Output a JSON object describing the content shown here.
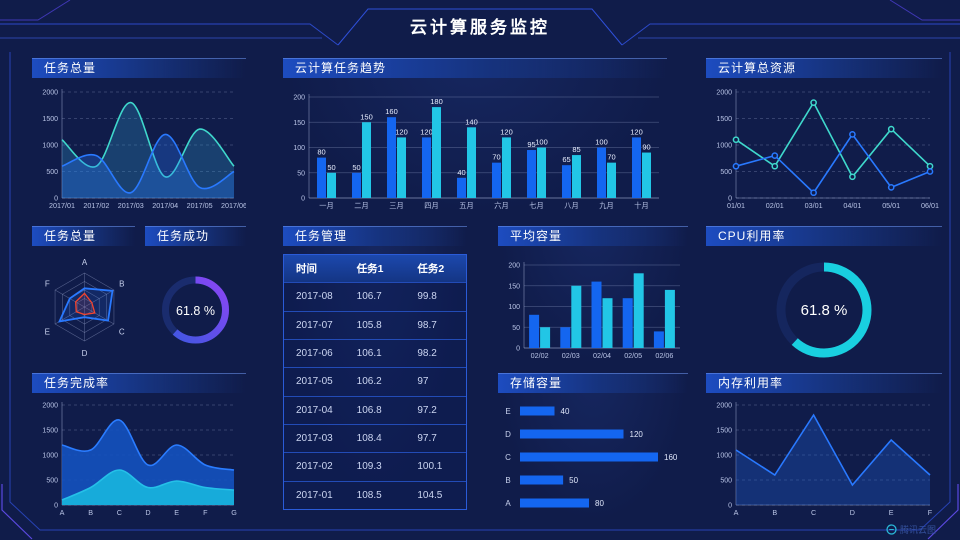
{
  "page": {
    "title": "云计算服务监控",
    "watermark": "腾讯云图"
  },
  "colors": {
    "background": "#101c4a",
    "accent_blue": "#1d4cc0",
    "bar_blue": "#1466f0",
    "bar_cyan": "#22c6e6",
    "line_blue": "#2979ff",
    "line_teal": "#3fd8cc",
    "radar_red": "#f4442e",
    "gauge_purple": "#8b45f5",
    "gauge_cyan": "#19cfe0",
    "axis_text": "#b9c4e6"
  },
  "panels": {
    "task_total_line": {
      "title": "任务总量"
    },
    "task_trend": {
      "title": "云计算任务趋势"
    },
    "total_resources": {
      "title": "云计算总资源"
    },
    "task_total_radar": {
      "title": "任务总量"
    },
    "task_success": {
      "title": "任务成功"
    },
    "task_management": {
      "title": "任务管理"
    },
    "avg_capacity": {
      "title": "平均容量"
    },
    "cpu": {
      "title": "CPU利用率"
    },
    "task_completion": {
      "title": "任务完成率"
    },
    "storage": {
      "title": "存储容量"
    },
    "memory": {
      "title": "内存利用率"
    }
  },
  "chart_data": [
    {
      "id": "task_total_line",
      "type": "area",
      "title": "任务总量",
      "smooth": true,
      "x": [
        "2017/01",
        "2017/02",
        "2017/03",
        "2017/04",
        "2017/05",
        "2017/06"
      ],
      "ylim": [
        0,
        2000
      ],
      "yticks": [
        0,
        500,
        1000,
        1500,
        2000
      ],
      "grid": "dashed",
      "series": [
        {
          "stroke": "#3fd8cc",
          "fill": "rgba(46,150,200,0.30)",
          "values": [
            1100,
            600,
            1800,
            400,
            1300,
            600
          ]
        },
        {
          "stroke": "#2979ff",
          "fill": "rgba(41,121,255,0.30)",
          "values": [
            600,
            800,
            100,
            1200,
            200,
            500
          ]
        }
      ]
    },
    {
      "id": "task_trend",
      "type": "bar",
      "title": "云计算任务趋势",
      "labels": true,
      "categories": [
        "一月",
        "二月",
        "三月",
        "四月",
        "五月",
        "六月",
        "七月",
        "八月",
        "九月",
        "十月"
      ],
      "ylim": [
        0,
        200
      ],
      "yticks": [
        0,
        50,
        100,
        150,
        200
      ],
      "series": [
        {
          "color": "#1466f0",
          "values": [
            80,
            50,
            160,
            120,
            40,
            70,
            95,
            65,
            100,
            120
          ]
        },
        {
          "color": "#22c6e6",
          "values": [
            50,
            150,
            120,
            180,
            140,
            120,
            100,
            85,
            70,
            90
          ]
        }
      ]
    },
    {
      "id": "total_resources",
      "type": "line",
      "title": "云计算总资源",
      "markers": true,
      "x": [
        "01/01",
        "02/01",
        "03/01",
        "04/01",
        "05/01",
        "06/01"
      ],
      "ylim": [
        0,
        2000
      ],
      "yticks": [
        0,
        500,
        1000,
        1500,
        2000
      ],
      "grid": "dashed",
      "series": [
        {
          "stroke": "#3fd8cc",
          "values": [
            1100,
            600,
            1800,
            400,
            1300,
            600
          ]
        },
        {
          "stroke": "#2979ff",
          "values": [
            600,
            800,
            100,
            1200,
            200,
            500
          ]
        }
      ]
    },
    {
      "id": "task_total_radar",
      "type": "radar",
      "title": "任务总量",
      "axes": [
        "A",
        "B",
        "C",
        "D",
        "E",
        "F"
      ],
      "max": 100,
      "series": [
        {
          "stroke": "#2979ff",
          "fill": "rgba(41,121,255,0.15)",
          "values": [
            55,
            95,
            80,
            30,
            85,
            50
          ]
        },
        {
          "stroke": "#f4442e",
          "fill": "rgba(244,68,46,0.12)",
          "values": [
            40,
            25,
            35,
            22,
            28,
            30
          ]
        }
      ]
    },
    {
      "id": "task_success_gauge",
      "type": "gauge",
      "title": "任务成功",
      "percent": 61.8,
      "value": "61.8 %",
      "colors": [
        "#3c58e0",
        "#8b45f5"
      ],
      "track": "#1a2c6e",
      "r": 30,
      "w": 7
    },
    {
      "id": "task_table",
      "type": "table",
      "title": "任务管理",
      "headers": [
        "时间",
        "任务1",
        "任务2"
      ],
      "rows": [
        [
          "2017-08",
          "106.7",
          "99.8"
        ],
        [
          "2017-07",
          "105.8",
          "98.7"
        ],
        [
          "2017-06",
          "106.1",
          "98.2"
        ],
        [
          "2017-05",
          "106.2",
          "97"
        ],
        [
          "2017-04",
          "106.8",
          "97.2"
        ],
        [
          "2017-03",
          "108.4",
          "97.7"
        ],
        [
          "2017-02",
          "109.3",
          "100.1"
        ],
        [
          "2017-01",
          "108.5",
          "104.5"
        ]
      ]
    },
    {
      "id": "avg_capacity",
      "type": "bar",
      "title": "平均容量",
      "labels": false,
      "categories": [
        "02/02",
        "02/03",
        "02/04",
        "02/05",
        "02/06"
      ],
      "ylim": [
        0,
        200
      ],
      "yticks": [
        0,
        50,
        100,
        150,
        200
      ],
      "series": [
        {
          "color": "#1466f0",
          "values": [
            80,
            50,
            160,
            120,
            40
          ]
        },
        {
          "color": "#22c6e6",
          "values": [
            50,
            150,
            120,
            180,
            140
          ]
        }
      ]
    },
    {
      "id": "cpu_gauge",
      "type": "gauge",
      "title": "CPU利用率",
      "percent": 61.8,
      "value": "61.8 %",
      "colors": [
        "#19cfe0",
        "#19cfe0"
      ],
      "track": "#15265e",
      "r": 43,
      "w": 9
    },
    {
      "id": "task_completion",
      "type": "area",
      "title": "任务完成率",
      "smooth": true,
      "x": [
        "A",
        "B",
        "C",
        "D",
        "E",
        "F",
        "G"
      ],
      "ylim": [
        0,
        2000
      ],
      "yticks": [
        0,
        500,
        1000,
        1500,
        2000
      ],
      "grid": "dashed",
      "series": [
        {
          "stroke": "#2a7cff",
          "fill": "rgba(19,83,194,0.88)",
          "values": [
            1200,
            1100,
            1700,
            800,
            1200,
            800,
            700
          ]
        },
        {
          "stroke": "#25c0e8",
          "fill": "rgba(23,176,220,0.95)",
          "values": [
            100,
            350,
            700,
            350,
            480,
            350,
            300
          ]
        }
      ]
    },
    {
      "id": "storage",
      "type": "hbar",
      "title": "存储容量",
      "categories": [
        "E",
        "D",
        "C",
        "B",
        "A"
      ],
      "values": [
        40,
        120,
        160,
        50,
        80
      ],
      "max": 160,
      "color": "#1466f0"
    },
    {
      "id": "memory",
      "type": "line",
      "title": "内存利用率",
      "markers": false,
      "x": [
        "A",
        "B",
        "C",
        "D",
        "E",
        "F"
      ],
      "ylim": [
        0,
        2000
      ],
      "yticks": [
        0,
        500,
        1000,
        1500,
        2000
      ],
      "grid": "dashed",
      "series": [
        {
          "stroke": "#2979ff",
          "fill": "rgba(30,90,200,0.35)",
          "values": [
            1100,
            600,
            1800,
            400,
            1300,
            600
          ]
        }
      ]
    }
  ]
}
